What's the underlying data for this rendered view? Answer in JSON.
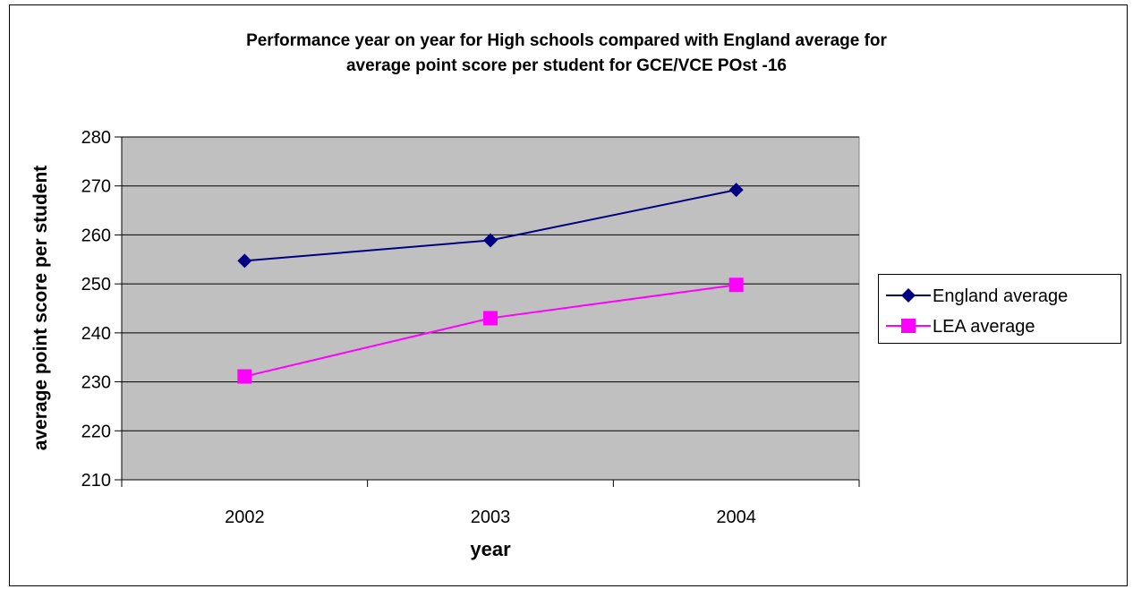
{
  "chart_data": {
    "type": "line",
    "title": [
      "Performance year on year for High schools compared with England average for",
      "average point score per student for GCE/VCE POst -16"
    ],
    "xlabel": "year",
    "ylabel": "average point score per student",
    "categories": [
      "2002",
      "2003",
      "2004"
    ],
    "ylim": [
      210,
      280
    ],
    "yticks": [
      "210",
      "220",
      "230",
      "240",
      "250",
      "260",
      "270",
      "280"
    ],
    "grid": true,
    "legend_position": "right",
    "plot_background": "#c0c0c0",
    "series": [
      {
        "name": "England average",
        "values": [
          254.7,
          258.9,
          269.2
        ],
        "color": "#000080",
        "marker": "diamond"
      },
      {
        "name": "LEA average",
        "values": [
          231.1,
          243.0,
          249.8
        ],
        "color": "#ff00ff",
        "marker": "square"
      }
    ]
  }
}
